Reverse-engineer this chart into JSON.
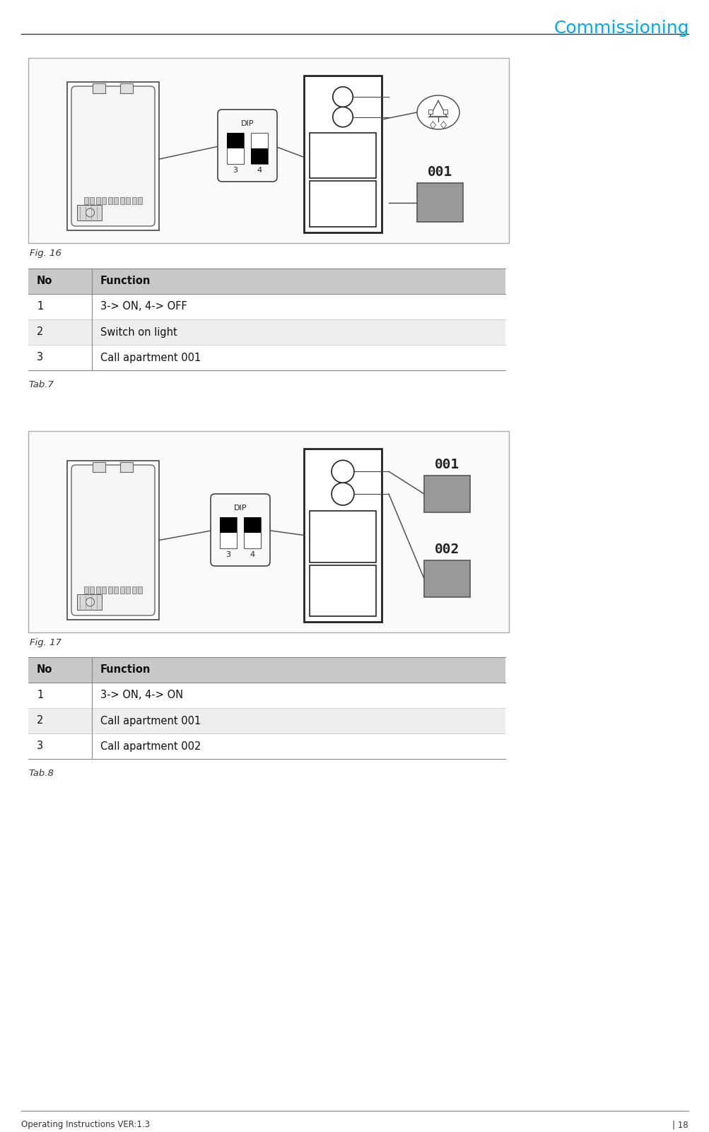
{
  "title": "Commissioning",
  "title_color": "#00AAEE",
  "header_line_color": "#000000",
  "footer_line_color": "#888888",
  "footer_left": "Operating Instructions VER:1.3",
  "footer_right": "| 18",
  "fig16_caption": "Fig. 16",
  "fig17_caption": "Fig. 17",
  "tab7_caption": "Tab.7",
  "tab8_caption": "Tab.8",
  "table1_headers": [
    "No",
    "Function"
  ],
  "table1_rows": [
    [
      "1",
      "3-> ON, 4-> OFF"
    ],
    [
      "2",
      "Switch on light"
    ],
    [
      "3",
      "Call apartment 001"
    ]
  ],
  "table2_headers": [
    "No",
    "Function"
  ],
  "table2_rows": [
    [
      "1",
      "3-> ON, 4-> ON"
    ],
    [
      "2",
      "Call apartment 001"
    ],
    [
      "3",
      "Call apartment 002"
    ]
  ],
  "header_bg": "#C8C8C8",
  "row_bg1": "#FFFFFF",
  "row_bg2": "#EEEEEE",
  "page_bg": "#FFFFFF",
  "diag_border": "#AAAAAA",
  "diag_bg": "#FAFAFA"
}
